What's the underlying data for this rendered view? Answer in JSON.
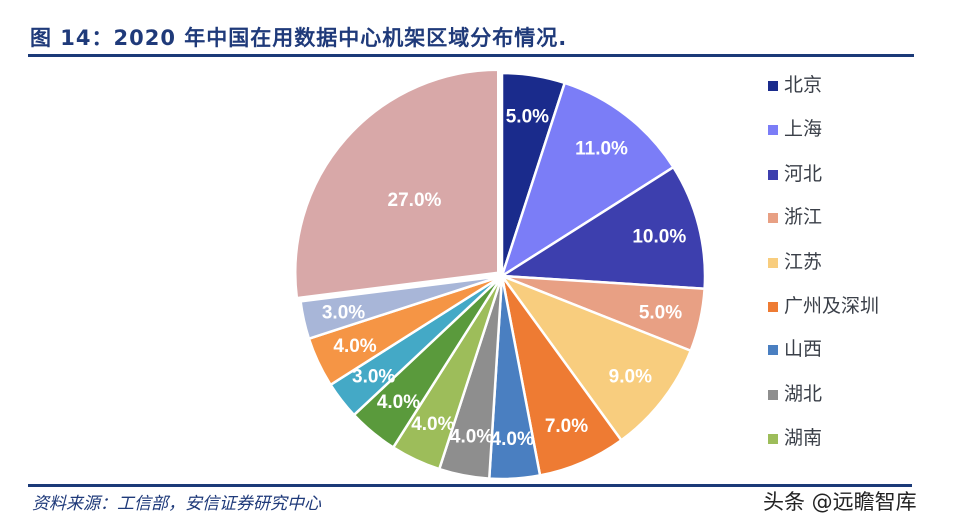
{
  "header": {
    "title": "图 14：2020 年中国在用数据中心机架区域分布情况."
  },
  "footer": {
    "source": "资料来源：工信部，安信证券研究中心",
    "watermark": "头条 @远瞻智库"
  },
  "legend": {
    "items": [
      {
        "label": "北京",
        "color": "#1a2b8c"
      },
      {
        "label": "上海",
        "color": "#7b7df7"
      },
      {
        "label": "河北",
        "color": "#3d3fae"
      },
      {
        "label": "浙江",
        "color": "#e8a084"
      },
      {
        "label": "江苏",
        "color": "#f8cd7e"
      },
      {
        "label": "广州及深圳",
        "color": "#ee7b33"
      },
      {
        "label": "山西",
        "color": "#4a7fc1"
      },
      {
        "label": "湖北",
        "color": "#8e8e8e"
      },
      {
        "label": "湖南",
        "color": "#9dbd5a"
      }
    ]
  },
  "chart_data": {
    "type": "pie",
    "title": "图 14：2020 年中国在用数据中心机架区域分布情况.",
    "start_angle": "12 o'clock, clockwise",
    "legend_position": "right",
    "slices": [
      {
        "label": "北京",
        "value": 5.0,
        "display": "5.0%",
        "color": "#1a2b8c"
      },
      {
        "label": "上海",
        "value": 11.0,
        "display": "11.0%",
        "color": "#7b7df7"
      },
      {
        "label": "河北",
        "value": 10.0,
        "display": "10.0%",
        "color": "#3d3fae"
      },
      {
        "label": "浙江",
        "value": 5.0,
        "display": "5.0%",
        "color": "#e8a084"
      },
      {
        "label": "江苏",
        "value": 9.0,
        "display": "9.0%",
        "color": "#f8cd7e"
      },
      {
        "label": "广州及深圳",
        "value": 7.0,
        "display": "7.0%",
        "color": "#ee7b33"
      },
      {
        "label": "山西",
        "value": 4.0,
        "display": "4.0%",
        "color": "#4a7fc1"
      },
      {
        "label": "湖北",
        "value": 4.0,
        "display": "4.0%",
        "color": "#8e8e8e"
      },
      {
        "label": "湖南",
        "value": 4.0,
        "display": "4.0%",
        "color": "#9dbd5a"
      },
      {
        "label": "",
        "value": 4.0,
        "display": "4.0%",
        "color": "#5a9a3c"
      },
      {
        "label": "",
        "value": 3.0,
        "display": "3.0%",
        "color": "#44a9c6"
      },
      {
        "label": "",
        "value": 4.0,
        "display": "4.0%",
        "color": "#f59545"
      },
      {
        "label": "",
        "value": 3.0,
        "display": "3.0%",
        "color": "#a8b6d8"
      },
      {
        "label": "",
        "value": 27.0,
        "display": "27.0%",
        "color": "#d8a8a8",
        "exploded": true
      }
    ]
  }
}
